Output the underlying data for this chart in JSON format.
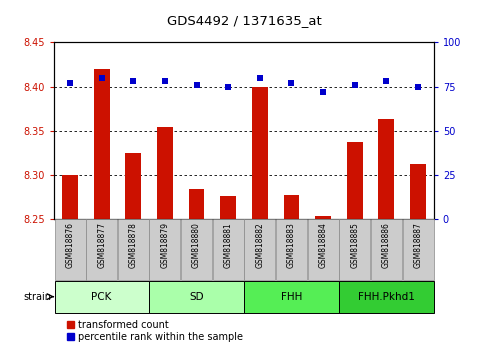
{
  "title": "GDS4492 / 1371635_at",
  "samples": [
    "GSM818876",
    "GSM818877",
    "GSM818878",
    "GSM818879",
    "GSM818880",
    "GSM818881",
    "GSM818882",
    "GSM818883",
    "GSM818884",
    "GSM818885",
    "GSM818886",
    "GSM818887"
  ],
  "red_values": [
    8.3,
    8.42,
    8.325,
    8.354,
    8.285,
    8.276,
    8.4,
    8.278,
    8.254,
    8.338,
    8.364,
    8.313
  ],
  "blue_values": [
    77,
    80,
    78,
    78,
    76,
    75,
    80,
    77,
    72,
    76,
    78,
    75
  ],
  "ylim_left": [
    8.25,
    8.45
  ],
  "ylim_right": [
    0,
    100
  ],
  "yticks_left": [
    8.25,
    8.3,
    8.35,
    8.4,
    8.45
  ],
  "yticks_right": [
    0,
    25,
    50,
    75,
    100
  ],
  "groups": [
    {
      "label": "PCK",
      "start": 0,
      "end": 3,
      "color": "#ccffcc"
    },
    {
      "label": "SD",
      "start": 3,
      "end": 6,
      "color": "#aaffaa"
    },
    {
      "label": "FHH",
      "start": 6,
      "end": 9,
      "color": "#55ee55"
    },
    {
      "label": "FHH.Pkhd1",
      "start": 9,
      "end": 12,
      "color": "#33cc33"
    }
  ],
  "bar_color": "#cc1100",
  "dot_color": "#0000cc",
  "bg_color": "#ffffff",
  "tick_bg_color": "#cccccc",
  "tick_border_color": "#888888",
  "title_color": "#000000",
  "left_tick_color": "#cc1100",
  "right_tick_color": "#0000cc",
  "bar_width": 0.5,
  "dot_size": 20
}
